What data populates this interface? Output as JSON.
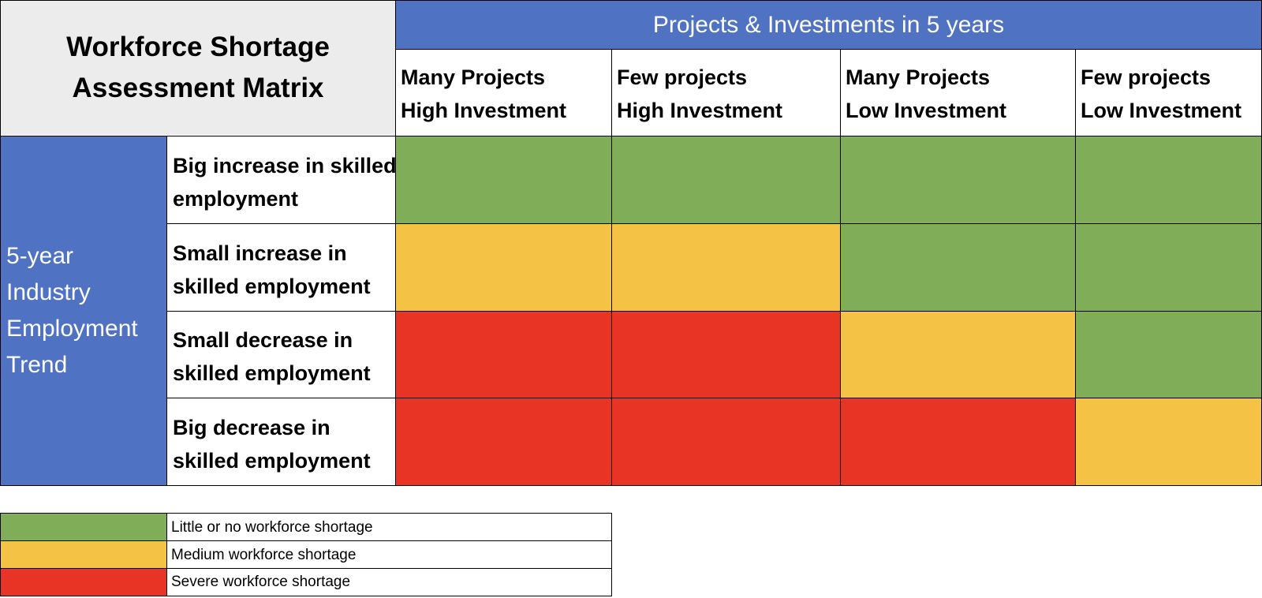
{
  "matrix": {
    "title_lines": [
      "Workforce Shortage",
      "Assessment Matrix"
    ],
    "top_header": "Projects & Investments in 5 years",
    "side_header_lines": [
      "5-year",
      "Industry",
      "Employment",
      "Trend"
    ],
    "columns": [
      {
        "line1": "Many Projects",
        "line2": "High Investment"
      },
      {
        "line1": "Few projects",
        "line2": "High Investment"
      },
      {
        "line1": "Many Projects",
        "line2": "Low Investment"
      },
      {
        "line1": "Few projects",
        "line2": "Low Investment"
      }
    ],
    "rows": [
      {
        "line1": "Big increase in skilled",
        "line2": "employment"
      },
      {
        "line1": "Small increase in",
        "line2": "skilled employment"
      },
      {
        "line1": "Small decrease in",
        "line2": "skilled employment"
      },
      {
        "line1": "Big decrease in",
        "line2": "skilled employment"
      }
    ],
    "grid_levels": [
      [
        "low",
        "low",
        "low",
        "low"
      ],
      [
        "medium",
        "medium",
        "low",
        "low"
      ],
      [
        "severe",
        "severe",
        "medium",
        "low"
      ],
      [
        "severe",
        "severe",
        "severe",
        "medium"
      ]
    ]
  },
  "legend": [
    {
      "level": "low",
      "label": "Little or no workforce shortage"
    },
    {
      "level": "medium",
      "label": "Medium workforce shortage"
    },
    {
      "level": "severe",
      "label": "Severe workforce shortage"
    }
  ],
  "colors": {
    "low": "#7fad58",
    "medium": "#f4c244",
    "severe": "#e83424",
    "header_blue": "#4f72c3",
    "title_gray": "#ececec"
  }
}
